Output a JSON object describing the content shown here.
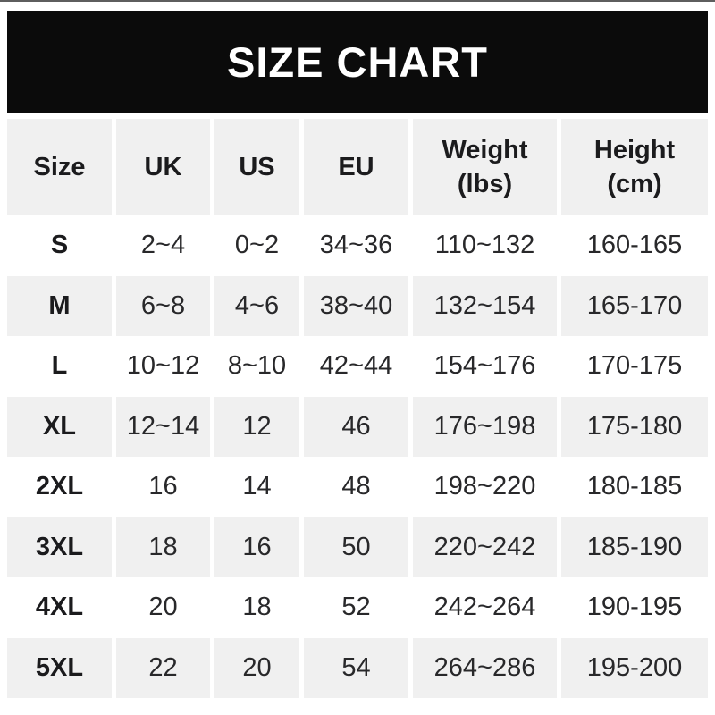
{
  "title": "SIZE CHART",
  "chart_data": {
    "type": "table",
    "title": "SIZE CHART",
    "columns": [
      "Size",
      "UK",
      "US",
      "EU",
      "Weight (lbs)",
      "Height (cm)"
    ],
    "rows": [
      [
        "S",
        "2~4",
        "0~2",
        "34~36",
        "110~132",
        "160-165"
      ],
      [
        "M",
        "6~8",
        "4~6",
        "38~40",
        "132~154",
        "165-170"
      ],
      [
        "L",
        "10~12",
        "8~10",
        "42~44",
        "154~176",
        "170-175"
      ],
      [
        "XL",
        "12~14",
        "12",
        "46",
        "176~198",
        "175-180"
      ],
      [
        "2XL",
        "16",
        "14",
        "48",
        "198~220",
        "180-185"
      ],
      [
        "3XL",
        "18",
        "16",
        "50",
        "220~242",
        "185-190"
      ],
      [
        "4XL",
        "20",
        "18",
        "52",
        "242~264",
        "190-195"
      ],
      [
        "5XL",
        "22",
        "20",
        "54",
        "264~286",
        "195-200"
      ]
    ],
    "layout": {
      "header_row_shaded": true,
      "alternating_row_shading": "white-gray",
      "column_separators": "white-gaps"
    }
  },
  "table": {
    "header_labels": [
      "Size",
      "UK",
      "US",
      "EU",
      "Weight\n(lbs)",
      "Height\n(cm)"
    ]
  },
  "colors": {
    "title_bar_bg": "#0b0b0b",
    "title_text": "#ffffff",
    "cell_alt_bg": "#f0f0f0",
    "text_bold": "#1b1b1d",
    "text_body": "#28282a",
    "page_bg": "#ffffff"
  }
}
